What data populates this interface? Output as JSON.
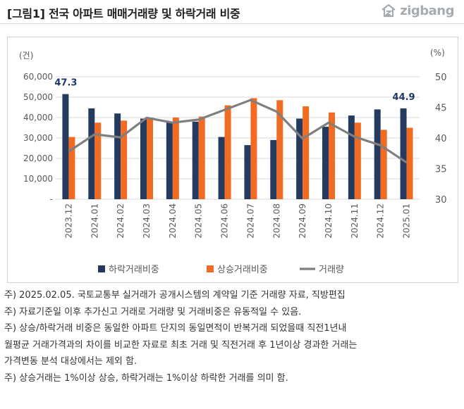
{
  "header": {
    "title": "[그림1] 전국 아파트 매매거래량 및 하락거래 비중",
    "logo_text": "zigbang"
  },
  "chart_data": {
    "type": "bar",
    "categories": [
      "2023.12",
      "2024.01",
      "2024.02",
      "2024.03",
      "2024.04",
      "2024.05",
      "2024.06",
      "2024.07",
      "2024.08",
      "2024.09",
      "2024.10",
      "2024.11",
      "2024.12",
      "2025.01"
    ],
    "series": [
      {
        "name": "하락거래비중",
        "type": "bar",
        "axis": "left",
        "color": "#243a5e",
        "values": [
          51500,
          44500,
          42000,
          39500,
          38000,
          38000,
          30500,
          26500,
          29000,
          39500,
          35500,
          41000,
          44000,
          44500
        ]
      },
      {
        "name": "상승거래비중",
        "type": "bar",
        "axis": "left",
        "color": "#f26b22",
        "values": [
          30500,
          37500,
          38500,
          40000,
          40000,
          40500,
          46000,
          49500,
          48500,
          45500,
          42500,
          37500,
          34000,
          35000
        ]
      },
      {
        "name": "거래량",
        "type": "line",
        "axis": "right",
        "color": "#7f7f7f",
        "values": [
          37.8,
          40.6,
          40.1,
          43.3,
          42.5,
          43.0,
          44.6,
          46.2,
          44.3,
          39.9,
          42.5,
          40.2,
          38.8,
          36.0
        ]
      }
    ],
    "left_axis": {
      "unit_label": "(건)",
      "ylim": [
        0,
        60000
      ],
      "ticks": [
        "-",
        "10,000",
        "20,000",
        "30,000",
        "40,000",
        "50,000",
        "60,000"
      ],
      "tick_values": [
        0,
        10000,
        20000,
        30000,
        40000,
        50000,
        60000
      ]
    },
    "right_axis": {
      "unit_label": "(%)",
      "ylim": [
        30,
        50
      ],
      "ticks": [
        "30",
        "35",
        "40",
        "45",
        "50"
      ],
      "tick_values": [
        30,
        35,
        40,
        45,
        50
      ]
    },
    "annotations": [
      {
        "category_index": 0,
        "series_index": 0,
        "text": "47.3"
      },
      {
        "category_index": 13,
        "series_index": 0,
        "text": "44.9"
      }
    ],
    "legend_position": "bottom",
    "grid": true
  },
  "notes": {
    "line1": "주) 2025.02.05. 국토교통부 실거래가 공개시스템의 계약일 기준 거래량  자료, 직방편집",
    "line2": "주) 자료기준일 이후 추가신고 거래로 거래량 및 거래비중은 유동적일 수 있음.",
    "line3a": "주) 상승/하락거래 비중은 동일한 아파트 단지의 동일면적이 반복거래 되었을때 직전1년내",
    "line3b": "월평균 거래가격과의 차이를 비교한 자료로 최초 거래 및 직전거래 후 1년이상 경과한 거래는",
    "line3c": "가격변동 분석 대상에서는 제외 함.",
    "line4": "주) 상승거래는 1%이상 상승, 하락거래는 1%이상 하락한 거래를 의미 함."
  }
}
